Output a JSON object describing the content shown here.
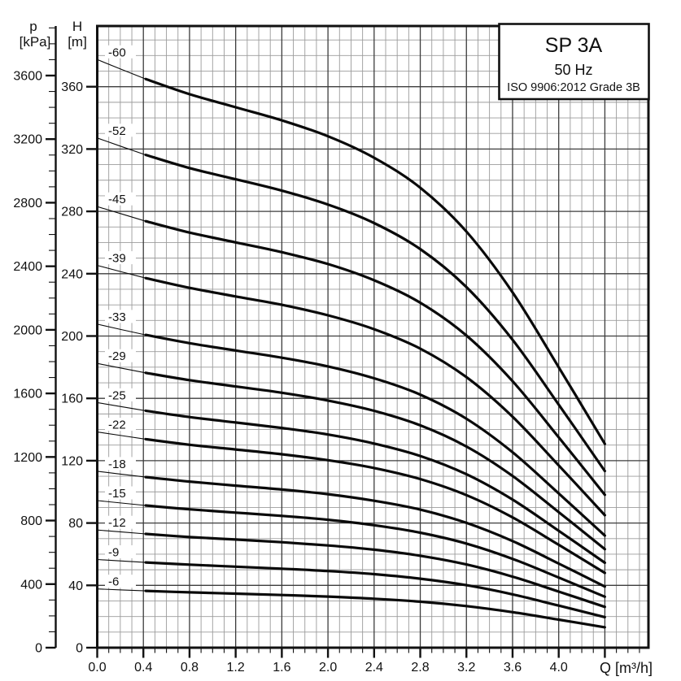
{
  "title_box": {
    "model": "SP 3A",
    "frequency": "50 Hz",
    "standard": "ISO 9906:2012 Grade 3B"
  },
  "colors": {
    "ink": "#111111",
    "curve": "#0a0a0a",
    "grid_minor": "#9b9b9b",
    "grid_major": "#3d3d3d",
    "background": "#ffffff"
  },
  "axes": {
    "pressure_axis": {
      "name": "p",
      "unit": "[kPa]",
      "major_ticks": [
        0,
        400,
        800,
        1200,
        1600,
        2000,
        2400,
        2800,
        3200,
        3600
      ],
      "minor_step": 100,
      "max": 3910
    },
    "head_axis": {
      "name": "H",
      "unit": "[m]",
      "major_ticks": [
        0,
        40,
        80,
        120,
        160,
        200,
        240,
        280,
        320,
        360
      ],
      "minor_step": 10,
      "max": 399
    },
    "flow_axis": {
      "name": "Q [m³/h]",
      "tick_labels": [
        "0.0",
        "0.4",
        "0.8",
        "1.2",
        "1.6",
        "2.0",
        "2.4",
        "2.8",
        "3.2",
        "3.6",
        "4.0"
      ],
      "major_step": 0.4,
      "minor_step": 0.1,
      "max": 4.78
    }
  },
  "chart_data": {
    "type": "line",
    "title": "SP 3A 50 Hz pump performance curves (ISO 9906:2012 Grade 3B)",
    "xlabel": "Q [m³/h]",
    "ylabel": "H [m]",
    "y2label": "p [kPa]",
    "xlim": [
      0,
      4.78
    ],
    "ylim": [
      0,
      399
    ],
    "y2lim": [
      0,
      3910
    ],
    "grid": {
      "x_minor": 0.1,
      "x_major": 0.4,
      "y_minor": 10,
      "y_major": 40
    },
    "legend_position": "labels-at-curve-start",
    "x": [
      0,
      0.4,
      0.8,
      1.2,
      1.6,
      2.0,
      2.4,
      2.8,
      3.2,
      3.6,
      4.0,
      4.4
    ],
    "series": [
      {
        "name": "-60",
        "values": [
          377.4,
          365.4,
          355.2,
          346.8,
          338.4,
          328.2,
          314.4,
          295.2,
          267.0,
          228.0,
          180.0,
          130.8
        ]
      },
      {
        "name": "-52",
        "values": [
          327.1,
          316.7,
          307.8,
          300.6,
          293.3,
          284.4,
          272.5,
          255.8,
          231.4,
          197.6,
          156.0,
          113.4
        ]
      },
      {
        "name": "-45",
        "values": [
          283.1,
          274.1,
          266.4,
          260.1,
          253.8,
          246.2,
          235.8,
          221.4,
          200.3,
          171.0,
          135.0,
          98.1
        ]
      },
      {
        "name": "-39",
        "values": [
          245.3,
          237.5,
          230.9,
          225.4,
          220.0,
          213.3,
          204.4,
          191.9,
          173.6,
          148.2,
          117.0,
          85.0
        ]
      },
      {
        "name": "-33",
        "values": [
          207.6,
          201.0,
          195.4,
          190.7,
          186.1,
          180.5,
          172.9,
          162.4,
          146.9,
          125.4,
          99.0,
          71.9
        ]
      },
      {
        "name": "-29",
        "values": [
          182.4,
          176.6,
          171.7,
          167.6,
          163.6,
          158.6,
          152.0,
          142.7,
          129.1,
          110.2,
          87.0,
          63.2
        ]
      },
      {
        "name": "-25",
        "values": [
          157.3,
          152.3,
          148.0,
          144.5,
          141.0,
          136.8,
          131.0,
          123.0,
          111.3,
          95.0,
          75.0,
          54.5
        ]
      },
      {
        "name": "-22",
        "values": [
          138.4,
          134.0,
          130.2,
          127.2,
          124.1,
          120.3,
          115.3,
          108.2,
          97.9,
          83.6,
          66.0,
          48.0
        ]
      },
      {
        "name": "-18",
        "values": [
          113.2,
          109.6,
          106.6,
          104.0,
          101.5,
          98.5,
          94.3,
          88.6,
          80.1,
          68.4,
          54.0,
          39.2
        ]
      },
      {
        "name": "-15",
        "values": [
          94.4,
          91.4,
          88.8,
          86.7,
          84.6,
          82.1,
          78.6,
          73.8,
          66.8,
          57.0,
          45.0,
          32.7
        ]
      },
      {
        "name": "-12",
        "values": [
          75.5,
          73.1,
          71.0,
          69.4,
          67.7,
          65.6,
          62.9,
          59.0,
          53.4,
          45.6,
          36.0,
          26.2
        ]
      },
      {
        "name": "-9",
        "values": [
          56.6,
          54.8,
          53.3,
          52.0,
          50.7,
          49.2,
          47.2,
          44.3,
          40.1,
          34.2,
          27.0,
          19.6
        ]
      },
      {
        "name": "-6",
        "values": [
          37.7,
          36.5,
          35.5,
          34.7,
          33.8,
          32.8,
          31.4,
          29.5,
          26.7,
          22.8,
          18.0,
          13.1
        ]
      }
    ]
  }
}
